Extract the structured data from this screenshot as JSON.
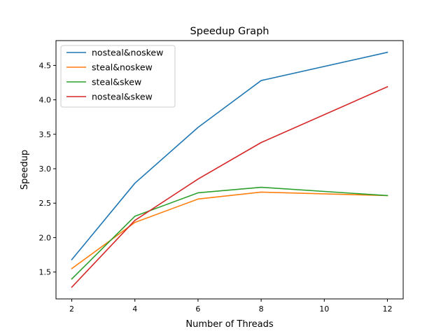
{
  "chart_data": {
    "type": "line",
    "title": "Speedup Graph",
    "xlabel": "Number of Threads",
    "ylabel": "Speedup",
    "xlim": [
      1.5,
      12.5
    ],
    "ylim": [
      1.11,
      4.86
    ],
    "xticks": [
      2,
      4,
      6,
      8,
      10,
      12
    ],
    "xtick_labels": [
      "2",
      "4",
      "6",
      "8",
      "10",
      "12"
    ],
    "yticks": [
      1.5,
      2.0,
      2.5,
      3.0,
      3.5,
      4.0,
      4.5
    ],
    "ytick_labels": [
      "1.5",
      "2.0",
      "2.5",
      "3.0",
      "3.5",
      "4.0",
      "4.5"
    ],
    "grid": false,
    "legend_position": "upper-left",
    "x": [
      2,
      4,
      6,
      8,
      12
    ],
    "series": [
      {
        "name": "nosteal&noskew",
        "color": "#1f77b4",
        "values": [
          1.68,
          2.79,
          3.6,
          4.28,
          4.69
        ]
      },
      {
        "name": "steal&noskew",
        "color": "#ff7f0e",
        "values": [
          1.55,
          2.22,
          2.56,
          2.66,
          2.61
        ]
      },
      {
        "name": "steal&skew",
        "color": "#2ca02c",
        "values": [
          1.4,
          2.31,
          2.65,
          2.73,
          2.61
        ]
      },
      {
        "name": "nosteal&skew",
        "color": "#d62728",
        "values": [
          1.28,
          2.25,
          2.85,
          3.38,
          4.19
        ]
      }
    ]
  }
}
